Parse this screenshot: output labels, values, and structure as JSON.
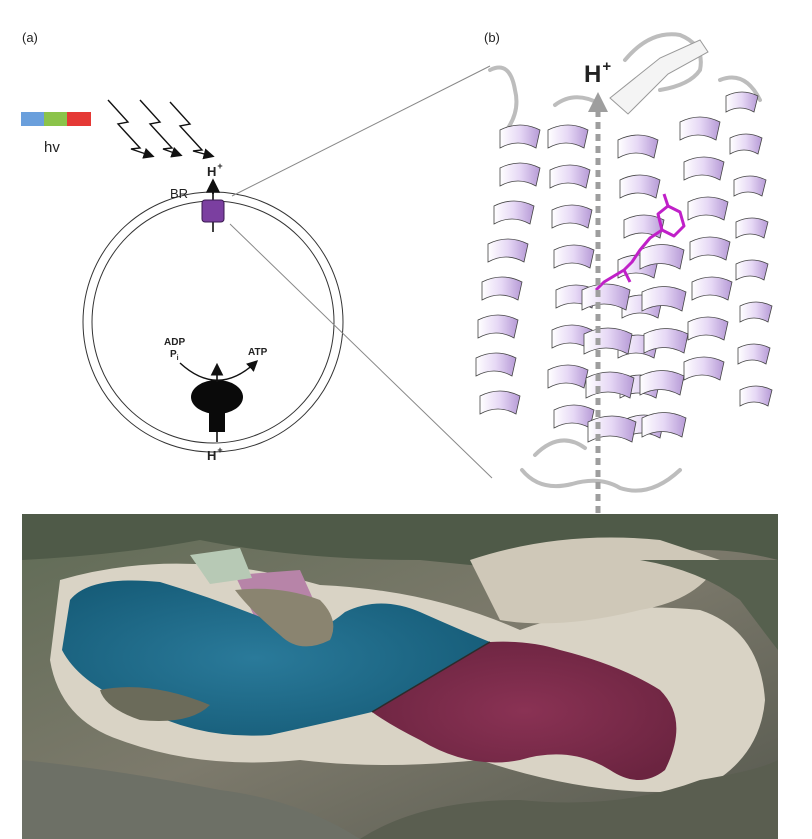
{
  "panel_a": {
    "label": "(a)",
    "spectrum_colors": [
      "#6a9fdc",
      "#8bc34a",
      "#e53935"
    ],
    "hv_label": "hv",
    "protein_label": "BR",
    "proton_out": "H",
    "proton_out_sup": "+",
    "adp_label": "ADP",
    "pi_label": "P",
    "pi_sub": "i",
    "atp_label": "ATP",
    "proton_in": "H",
    "proton_in_sup": "+",
    "br_color": "#7b3fa0"
  },
  "panel_b": {
    "label": "(b)",
    "proton_label": "H",
    "proton_sup": "+",
    "helix_color": "#d7c3ec",
    "retinal_color": "#c020c8"
  },
  "photo": {
    "blue_lake_color": "#1e6b8a",
    "red_lake_color": "#7a2d4a"
  }
}
